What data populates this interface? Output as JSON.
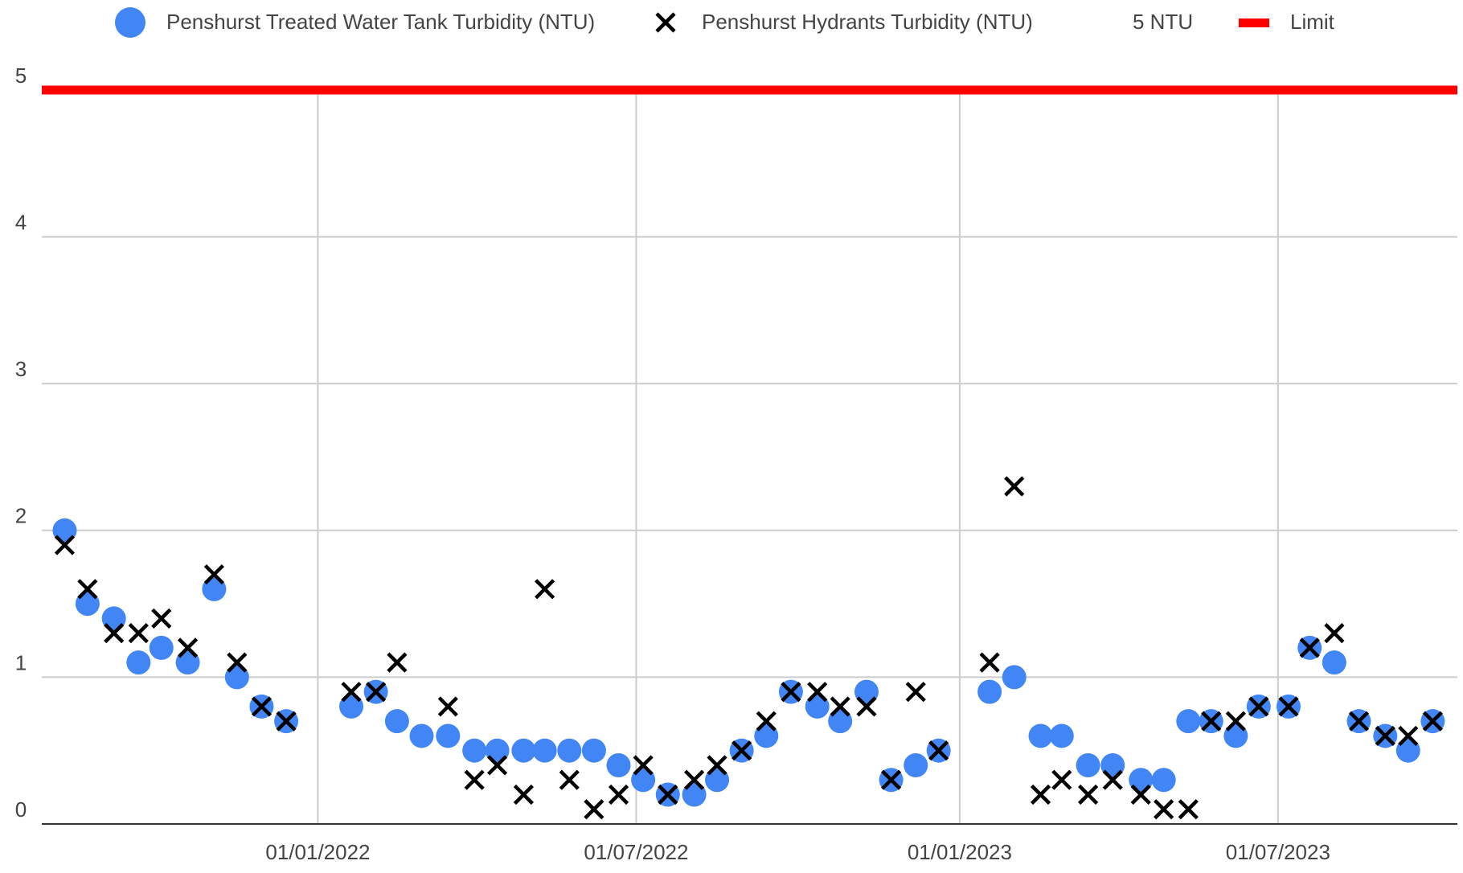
{
  "chart_data": {
    "type": "scatter",
    "x": [
      "2021-08-10",
      "2021-08-23",
      "2021-09-07",
      "2021-09-21",
      "2021-10-04",
      "2021-10-19",
      "2021-11-03",
      "2021-11-16",
      "2021-11-30",
      "2021-12-14",
      "2022-01-20",
      "2022-02-03",
      "2022-02-15",
      "2022-03-01",
      "2022-03-16",
      "2022-03-31",
      "2022-04-13",
      "2022-04-28",
      "2022-05-10",
      "2022-05-24",
      "2022-06-07",
      "2022-06-21",
      "2022-07-05",
      "2022-07-19",
      "2022-08-03",
      "2022-08-16",
      "2022-08-30",
      "2022-09-13",
      "2022-09-27",
      "2022-10-12",
      "2022-10-25",
      "2022-11-09",
      "2022-11-23",
      "2022-12-07",
      "2022-12-20",
      "2023-01-18",
      "2023-02-01",
      "2023-02-16",
      "2023-02-28",
      "2023-03-15",
      "2023-03-29",
      "2023-04-14",
      "2023-04-27",
      "2023-05-11",
      "2023-05-24",
      "2023-06-07",
      "2023-06-20",
      "2023-07-07",
      "2023-07-19",
      "2023-08-02",
      "2023-08-16",
      "2023-08-31",
      "2023-09-13",
      "2023-09-27"
    ],
    "series": [
      {
        "name": "Penshurst Treated Water Tank Turbidity (NTU)",
        "color": "#4285f4",
        "marker": "circle",
        "values": [
          2.0,
          1.5,
          1.4,
          1.1,
          1.2,
          1.1,
          1.6,
          1.0,
          0.8,
          0.7,
          0.8,
          0.9,
          0.7,
          0.6,
          0.6,
          0.5,
          0.5,
          0.5,
          0.5,
          0.5,
          0.5,
          0.4,
          0.3,
          0.2,
          0.2,
          0.3,
          0.5,
          0.6,
          0.9,
          0.8,
          0.7,
          0.9,
          0.3,
          0.4,
          0.5,
          0.9,
          1.0,
          0.6,
          0.6,
          0.4,
          0.4,
          0.3,
          0.3,
          0.7,
          0.7,
          0.6,
          0.8,
          0.8,
          1.2,
          1.1,
          0.7,
          0.6,
          0.5,
          0.7
        ]
      },
      {
        "name": "Penshurst Hydrants Turbidity (NTU)",
        "color": "#000000",
        "marker": "cross",
        "values": [
          1.9,
          1.6,
          1.3,
          1.3,
          1.4,
          1.2,
          1.7,
          1.1,
          0.8,
          0.7,
          0.9,
          0.9,
          1.1,
          null,
          0.8,
          0.3,
          0.4,
          0.2,
          1.6,
          0.3,
          0.1,
          0.2,
          0.4,
          0.2,
          0.3,
          0.4,
          0.5,
          0.7,
          0.9,
          0.9,
          0.8,
          0.8,
          0.3,
          0.9,
          0.5,
          1.1,
          2.3,
          0.2,
          0.3,
          0.2,
          0.3,
          0.2,
          0.1,
          0.1,
          0.7,
          0.7,
          0.8,
          0.8,
          1.2,
          1.3,
          0.7,
          0.6,
          0.6,
          0.7
        ]
      }
    ],
    "legend_note": "5 NTU",
    "limit": {
      "name": "Limit",
      "value": 5,
      "color": "#ff0000"
    },
    "xlim": [
      "2021-07-28",
      "2023-10-11"
    ],
    "xticks": [
      {
        "value": "2022-01-01",
        "label": "01/01/2022"
      },
      {
        "value": "2022-07-01",
        "label": "01/07/2022"
      },
      {
        "value": "2023-01-01",
        "label": "01/01/2023"
      },
      {
        "value": "2023-07-01",
        "label": "01/07/2023"
      }
    ],
    "ylim": [
      0,
      5
    ],
    "yticks": [
      0,
      1,
      2,
      3,
      4,
      5
    ],
    "grid": true,
    "legend": "top"
  }
}
